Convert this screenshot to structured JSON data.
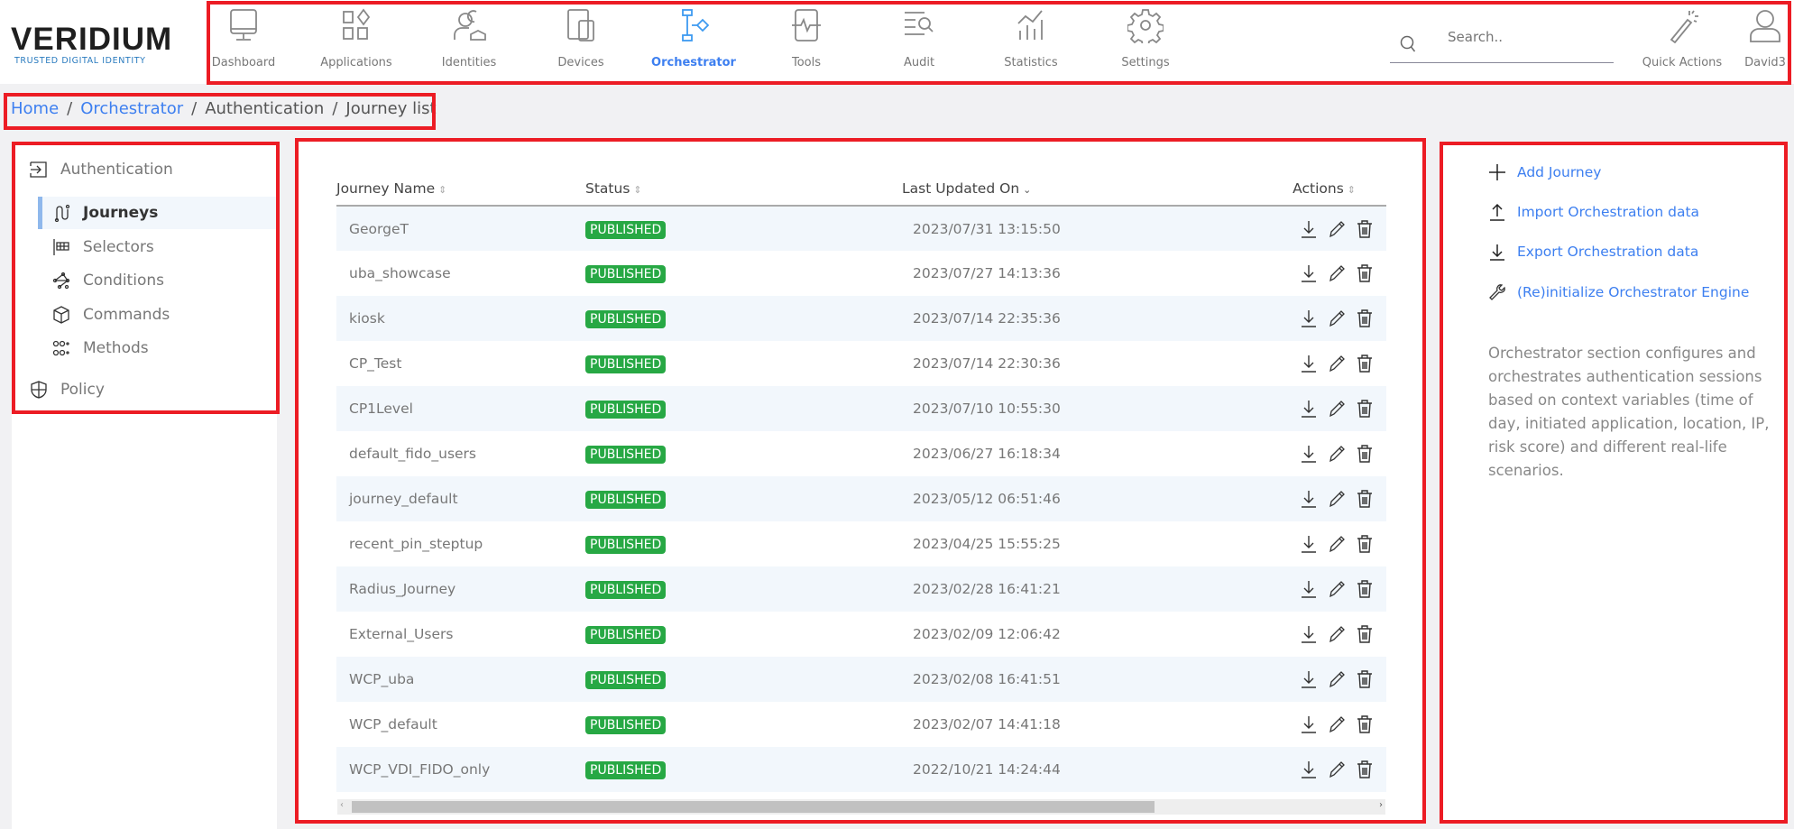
{
  "logo": {
    "word": "VERIDIUM",
    "tagline": "TRUSTED DIGITAL IDENTITY"
  },
  "nav": [
    {
      "label": "Dashboard",
      "icon": "monitor-icon"
    },
    {
      "label": "Applications",
      "icon": "apps-icon"
    },
    {
      "label": "Identities",
      "icon": "users-icon"
    },
    {
      "label": "Devices",
      "icon": "devices-icon"
    },
    {
      "label": "Orchestrator",
      "icon": "flow-icon",
      "active": true
    },
    {
      "label": "Tools",
      "icon": "tools-icon"
    },
    {
      "label": "Audit",
      "icon": "audit-icon"
    },
    {
      "label": "Statistics",
      "icon": "statistics-icon"
    },
    {
      "label": "Settings",
      "icon": "gear-icon"
    }
  ],
  "search": {
    "placeholder": "Search.."
  },
  "quick_actions": "Quick Actions",
  "user": "David3",
  "breadcrumb": {
    "home": "Home",
    "orchestrator": "Orchestrator",
    "authentication": "Authentication",
    "current": "Journey list"
  },
  "sidebar": {
    "authentication": "Authentication",
    "items": [
      {
        "label": "Journeys",
        "active": true
      },
      {
        "label": "Selectors"
      },
      {
        "label": "Conditions"
      },
      {
        "label": "Commands"
      },
      {
        "label": "Methods"
      }
    ],
    "policy": "Policy"
  },
  "table": {
    "headers": [
      "Journey Name",
      "Status",
      "Last Updated On",
      "Actions"
    ],
    "rows": [
      {
        "name": "GeorgeT",
        "status": "PUBLISHED",
        "updated": "2023/07/31 13:15:50"
      },
      {
        "name": "uba_showcase",
        "status": "PUBLISHED",
        "updated": "2023/07/27 14:13:36"
      },
      {
        "name": "kiosk",
        "status": "PUBLISHED",
        "updated": "2023/07/14 22:35:36"
      },
      {
        "name": "CP_Test",
        "status": "PUBLISHED",
        "updated": "2023/07/14 22:30:36"
      },
      {
        "name": "CP1Level",
        "status": "PUBLISHED",
        "updated": "2023/07/10 10:55:30"
      },
      {
        "name": "default_fido_users",
        "status": "PUBLISHED",
        "updated": "2023/06/27 16:18:34"
      },
      {
        "name": "journey_default",
        "status": "PUBLISHED",
        "updated": "2023/05/12 06:51:46"
      },
      {
        "name": "recent_pin_steptup",
        "status": "PUBLISHED",
        "updated": "2023/04/25 15:55:25"
      },
      {
        "name": "Radius_Journey",
        "status": "PUBLISHED",
        "updated": "2023/02/28 16:41:21"
      },
      {
        "name": "External_Users",
        "status": "PUBLISHED",
        "updated": "2023/02/09 12:06:42"
      },
      {
        "name": "WCP_uba",
        "status": "PUBLISHED",
        "updated": "2023/02/08 16:41:51"
      },
      {
        "name": "WCP_default",
        "status": "PUBLISHED",
        "updated": "2023/02/07 14:41:18"
      },
      {
        "name": "WCP_VDI_FIDO_only",
        "status": "PUBLISHED",
        "updated": "2022/10/21 14:24:44"
      }
    ]
  },
  "right": {
    "links": [
      "Add Journey",
      "Import Orchestration data",
      "Export Orchestration data",
      "(Re)initialize Orchestrator Engine"
    ],
    "description": "Orchestrator section configures and orchestrates authentication sessions based on context variables (time of day, initiated application, location, IP, risk score) and different real-life scenarios."
  },
  "colors": {
    "accent": "#3d7ff0",
    "published": "#27a844",
    "annotation": "#ec1c24"
  }
}
